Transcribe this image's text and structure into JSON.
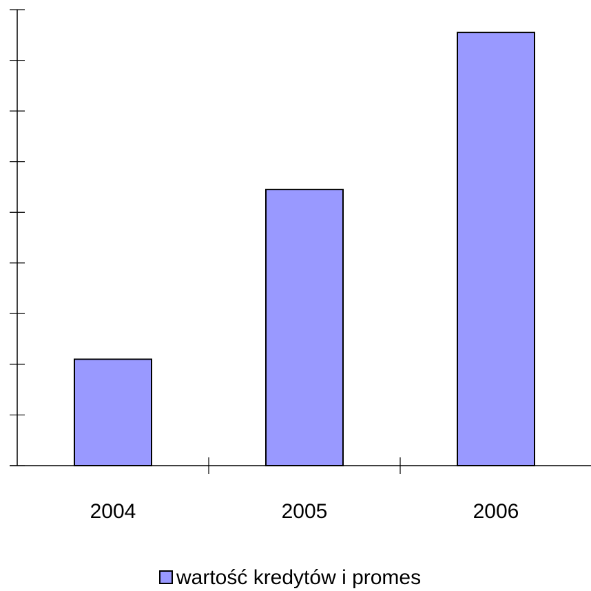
{
  "chart_data": {
    "type": "bar",
    "categories": [
      "2004",
      "2005",
      "2006"
    ],
    "series": [
      {
        "name": "wartość kredytów i promes",
        "values": [
          2.1,
          5.45,
          8.55
        ],
        "color": "#9999ff"
      }
    ],
    "ylim": [
      0,
      9
    ],
    "y_ticks": [
      0,
      1,
      2,
      3,
      4,
      5,
      6,
      7,
      8,
      9
    ],
    "y_tick_labels_shown": false,
    "grid": false,
    "legend": "bottom-center"
  }
}
